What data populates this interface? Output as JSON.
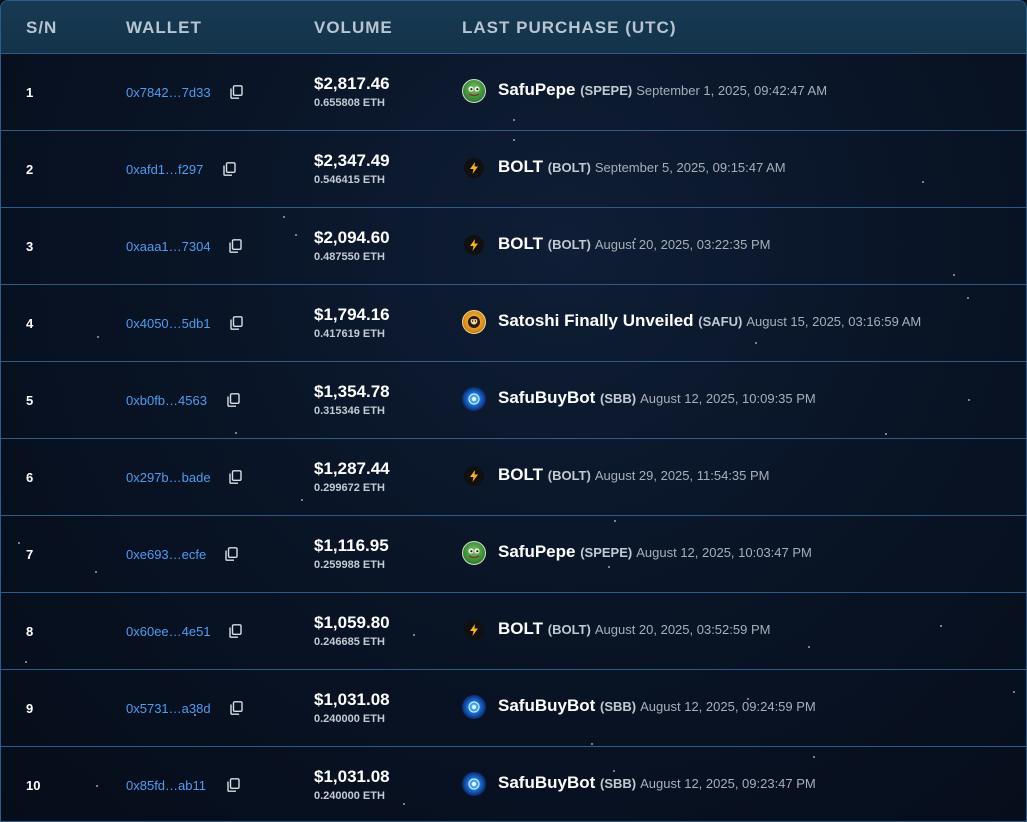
{
  "header": {
    "sn": "S/N",
    "wallet": "WALLET",
    "volume": "VOLUME",
    "last_purchase": "LAST PURCHASE (UTC)"
  },
  "rows": [
    {
      "sn": "1",
      "wallet": "0x7842…7d33",
      "usd": "$2,817.46",
      "eth": "0.655808 ETH",
      "token": "SafuPepe",
      "symbol": "(SPEPE)",
      "time": "September 1, 2025, 09:42:47 AM",
      "icon": "pepe-frog-icon"
    },
    {
      "sn": "2",
      "wallet": "0xafd1…f297",
      "usd": "$2,347.49",
      "eth": "0.546415 ETH",
      "token": "BOLT",
      "symbol": "(BOLT)",
      "time": "September 5, 2025, 09:15:47 AM",
      "icon": "lightning-bolt-icon"
    },
    {
      "sn": "3",
      "wallet": "0xaaa1…7304",
      "usd": "$2,094.60",
      "eth": "0.487550 ETH",
      "token": "BOLT",
      "symbol": "(BOLT)",
      "time": "August 20, 2025, 03:22:35 PM",
      "icon": "lightning-bolt-icon"
    },
    {
      "sn": "4",
      "wallet": "0x4050…5db1",
      "usd": "$1,794.16",
      "eth": "0.417619 ETH",
      "token": "Satoshi Finally Unveiled",
      "symbol": "(SAFU)",
      "time": "August 15, 2025, 03:16:59 AM",
      "icon": "satoshi-coin-icon"
    },
    {
      "sn": "5",
      "wallet": "0xb0fb…4563",
      "usd": "$1,354.78",
      "eth": "0.315346 ETH",
      "token": "SafuBuyBot",
      "symbol": "(SBB)",
      "time": "August 12, 2025, 10:09:35 PM",
      "icon": "blue-orb-icon"
    },
    {
      "sn": "6",
      "wallet": "0x297b…bade",
      "usd": "$1,287.44",
      "eth": "0.299672 ETH",
      "token": "BOLT",
      "symbol": "(BOLT)",
      "time": "August 29, 2025, 11:54:35 PM",
      "icon": "lightning-bolt-icon"
    },
    {
      "sn": "7",
      "wallet": "0xe693…ecfe",
      "usd": "$1,116.95",
      "eth": "0.259988 ETH",
      "token": "SafuPepe",
      "symbol": "(SPEPE)",
      "time": "August 12, 2025, 10:03:47 PM",
      "icon": "pepe-frog-icon"
    },
    {
      "sn": "8",
      "wallet": "0x60ee…4e51",
      "usd": "$1,059.80",
      "eth": "0.246685 ETH",
      "token": "BOLT",
      "symbol": "(BOLT)",
      "time": "August 20, 2025, 03:52:59 PM",
      "icon": "lightning-bolt-icon"
    },
    {
      "sn": "9",
      "wallet": "0x5731…a38d",
      "usd": "$1,031.08",
      "eth": "0.240000 ETH",
      "token": "SafuBuyBot",
      "symbol": "(SBB)",
      "time": "August 12, 2025, 09:24:59 PM",
      "icon": "blue-orb-icon"
    },
    {
      "sn": "10",
      "wallet": "0x85fd…ab11",
      "usd": "$1,031.08",
      "eth": "0.240000 ETH",
      "token": "SafuBuyBot",
      "symbol": "(SBB)",
      "time": "August 12, 2025, 09:23:47 PM",
      "icon": "blue-orb-icon"
    }
  ],
  "colors": {
    "wallet_link": "#4f9cf0",
    "header_bg": "#173a52",
    "row_border": "#2c5c8a",
    "background": "#07101f"
  }
}
